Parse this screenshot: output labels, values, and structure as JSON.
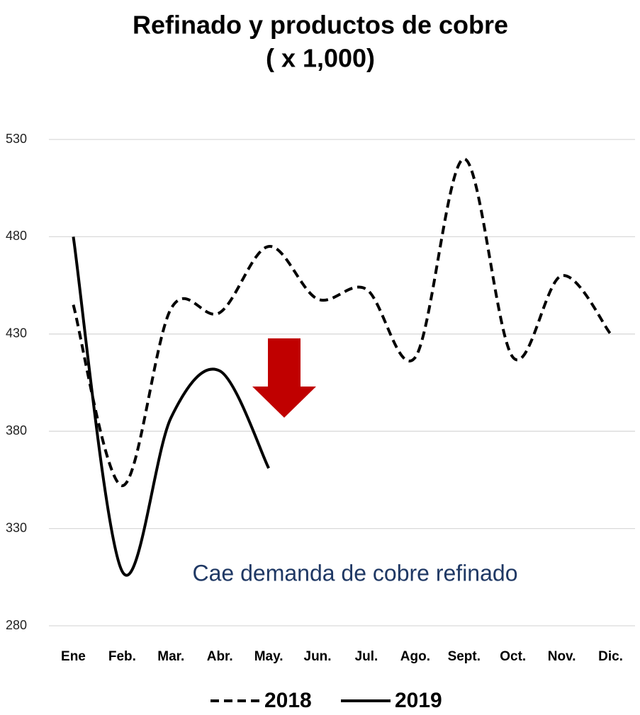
{
  "chart_data": {
    "type": "line",
    "title": "Refinado y productos de cobre",
    "subtitle": "( x 1,000)",
    "categories": [
      "Ene",
      "Feb.",
      "Mar.",
      "Abr.",
      "May.",
      "Jun.",
      "Jul.",
      "Ago.",
      "Sept.",
      "Oct.",
      "Nov.",
      "Dic."
    ],
    "series": [
      {
        "name": "2018",
        "color": "#000000",
        "line_style": "dashed",
        "values": [
          445,
          352,
          443,
          441,
          475,
          448,
          453,
          418,
          520,
          418,
          460,
          430
        ]
      },
      {
        "name": "2019",
        "color": "#000000",
        "line_style": "solid",
        "values": [
          480,
          308,
          387,
          411,
          361,
          null,
          null,
          null,
          null,
          null,
          null,
          null
        ]
      }
    ],
    "ylim": [
      280,
      530
    ],
    "yticks": [
      280,
      330,
      380,
      430,
      480,
      530
    ],
    "grid": true,
    "smooth": true,
    "legend": "bottom",
    "annotations": [
      "Cae demanda de cobre refinado"
    ]
  }
}
